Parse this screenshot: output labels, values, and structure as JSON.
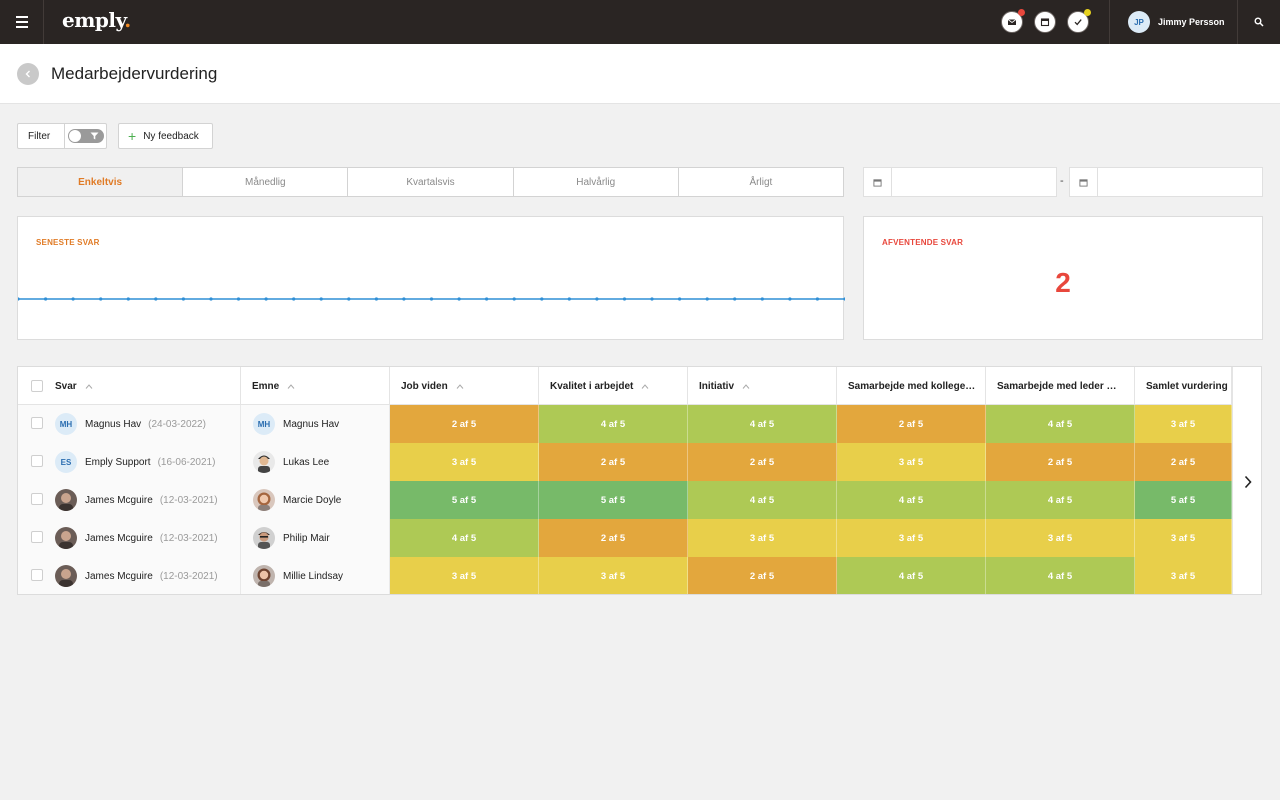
{
  "topbar": {
    "logo": "emply",
    "logo_dot": ".",
    "icons": [
      {
        "name": "mail-icon",
        "badge_color": "#e8473c"
      },
      {
        "name": "calendar-icon",
        "badge_color": null
      },
      {
        "name": "check-icon",
        "badge_color": "#e6d21f"
      }
    ],
    "user": {
      "initials": "JP",
      "name": "Jimmy Persson"
    }
  },
  "page": {
    "title": "Medarbejdervurdering"
  },
  "toolbar": {
    "filter_label": "Filter",
    "new_feedback_label": "Ny feedback"
  },
  "tabs": [
    {
      "label": "Enkeltvis",
      "active": true
    },
    {
      "label": "Månedlig",
      "active": false
    },
    {
      "label": "Kvartalsvis",
      "active": false
    },
    {
      "label": "Halvårlig",
      "active": false
    },
    {
      "label": "Årligt",
      "active": false
    }
  ],
  "date_range": {
    "from": "",
    "to": "",
    "separator": "-"
  },
  "cards": {
    "latest": {
      "label": "SENESTE SVAR",
      "color": "#e07b26"
    },
    "pending": {
      "label": "AFVENTENDE SVAR",
      "color": "#e8473c",
      "value": "2"
    }
  },
  "table": {
    "columns": [
      "Svar",
      "Emne",
      "Job viden",
      "Kvalitet i arbejdet",
      "Initiativ",
      "Samarbejde med kollege…",
      "Samarbejde med leder …",
      "Samlet vurdering"
    ],
    "rows": [
      {
        "svar": "Magnus Hav",
        "svar_initials": "MH",
        "date": "(24-03-2022)",
        "emne": "Magnus Hav",
        "emne_initials": "MH",
        "scores": [
          "2 af 5",
          "4 af 5",
          "4 af 5",
          "2 af 5",
          "4 af 5",
          "3 af 5"
        ]
      },
      {
        "svar": "Emply Support",
        "svar_initials": "ES",
        "date": "(16-06-2021)",
        "emne": "Lukas Lee",
        "emne_initials": "",
        "scores": [
          "3 af 5",
          "2 af 5",
          "2 af 5",
          "3 af 5",
          "2 af 5",
          "2 af 5"
        ]
      },
      {
        "svar": "James Mcguire",
        "svar_initials": "",
        "date": "(12-03-2021)",
        "emne": "Marcie Doyle",
        "emne_initials": "",
        "scores": [
          "5 af 5",
          "5 af 5",
          "4 af 5",
          "4 af 5",
          "4 af 5",
          "5 af 5"
        ]
      },
      {
        "svar": "James Mcguire",
        "svar_initials": "",
        "date": "(12-03-2021)",
        "emne": "Philip Mair",
        "emne_initials": "",
        "scores": [
          "4 af 5",
          "2 af 5",
          "3 af 5",
          "3 af 5",
          "3 af 5",
          "3 af 5"
        ]
      },
      {
        "svar": "James Mcguire",
        "svar_initials": "",
        "date": "(12-03-2021)",
        "emne": "Millie Lindsay",
        "emne_initials": "",
        "scores": [
          "3 af 5",
          "3 af 5",
          "2 af 5",
          "4 af 5",
          "4 af 5",
          "3 af 5"
        ]
      }
    ],
    "score_colors": {
      "2": "#e3a73d",
      "3": "#e8cf4a",
      "4": "#aec955",
      "5": "#77ba69"
    }
  }
}
